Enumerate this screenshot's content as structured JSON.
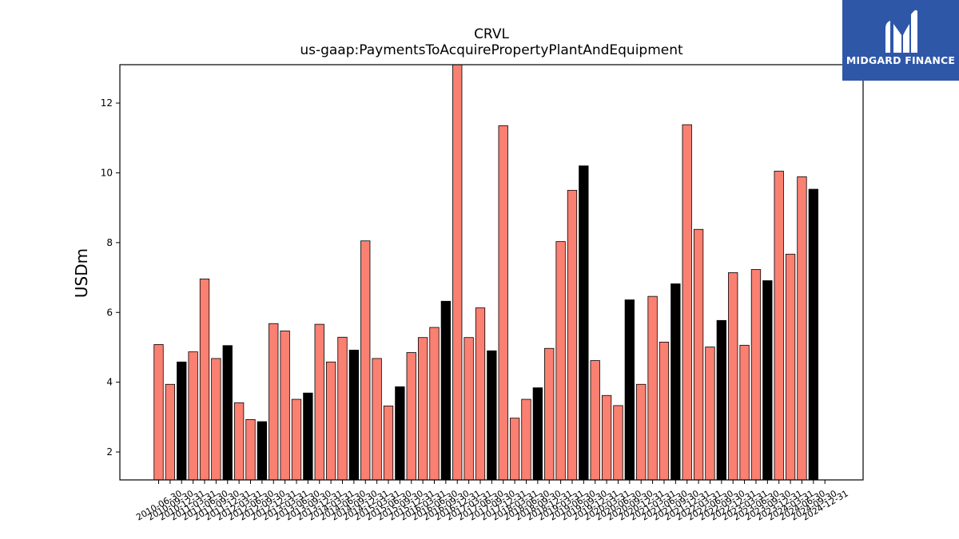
{
  "logo": {
    "text": "MIDGARD FINANCE",
    "background": "#2f57a8"
  },
  "colors": {
    "annual": "#000000",
    "quarterly": "#fa8072",
    "edge": "#000000"
  },
  "chart_data": {
    "type": "bar",
    "title": "CRVL",
    "subtitle": "us-gaap:PaymentsToAcquirePropertyPlantAndEquipment",
    "xlabel": "",
    "ylabel": "USDm",
    "ylim": [
      1.2,
      13.1
    ],
    "yticks": [
      2,
      4,
      6,
      8,
      10,
      12
    ],
    "grid": false,
    "legend": "none",
    "categories": [
      "2010-06-30",
      "2010-09-30",
      "2010-12-31",
      "2011-03-31",
      "2011-06-30",
      "2011-09-30",
      "2011-12-31",
      "2012-03-31",
      "2012-06-30",
      "2012-09-30",
      "2012-12-31",
      "2013-03-31",
      "2013-06-30",
      "2013-09-30",
      "2013-12-31",
      "2014-03-31",
      "2014-06-30",
      "2014-09-30",
      "2014-12-31",
      "2015-03-31",
      "2015-06-30",
      "2015-09-30",
      "2015-12-31",
      "2016-03-31",
      "2016-06-30",
      "2016-09-30",
      "2016-12-31",
      "2017-03-31",
      "2017-06-30",
      "2017-09-30",
      "2017-12-31",
      "2018-03-31",
      "2018-06-30",
      "2018-09-30",
      "2018-12-31",
      "2019-03-31",
      "2019-06-30",
      "2019-09-30",
      "2019-12-31",
      "2020-03-31",
      "2020-06-30",
      "2020-09-30",
      "2020-12-31",
      "2021-03-31",
      "2021-06-30",
      "2021-09-30",
      "2021-12-31",
      "2022-03-31",
      "2022-06-30",
      "2022-09-30",
      "2022-12-31",
      "2023-03-31",
      "2023-06-30",
      "2023-09-30",
      "2023-12-31",
      "2024-03-31",
      "2024-06-30",
      "2024-09-30",
      "2024-12-31"
    ],
    "values": [
      5.08,
      3.94,
      4.58,
      4.87,
      6.96,
      4.68,
      5.05,
      3.41,
      2.93,
      2.87,
      5.68,
      5.47,
      3.51,
      3.69,
      5.66,
      4.58,
      5.29,
      4.92,
      8.05,
      4.68,
      3.32,
      3.87,
      4.85,
      5.28,
      5.57,
      6.32,
      13.2,
      5.28,
      6.13,
      4.9,
      11.35,
      2.97,
      3.51,
      3.84,
      4.97,
      8.03,
      9.5,
      10.2,
      4.62,
      3.62,
      3.33,
      6.36,
      3.94,
      6.46,
      5.15,
      6.82,
      11.38,
      8.38,
      5.01,
      5.77,
      7.14,
      5.06,
      7.23,
      6.91,
      10.05,
      7.67,
      9.89,
      9.53,
      null
    ],
    "bar_kind": [
      "q",
      "q",
      "a",
      "q",
      "q",
      "q",
      "a",
      "q",
      "q",
      "a",
      "q",
      "q",
      "q",
      "a",
      "q",
      "q",
      "q",
      "a",
      "q",
      "q",
      "q",
      "a",
      "q",
      "q",
      "q",
      "a",
      "q",
      "q",
      "q",
      "a",
      "q",
      "q",
      "q",
      "a",
      "q",
      "q",
      "q",
      "a",
      "q",
      "q",
      "q",
      "a",
      "q",
      "q",
      "q",
      "a",
      "q",
      "q",
      "q",
      "a",
      "q",
      "q",
      "q",
      "a",
      "q",
      "q",
      "q",
      "a",
      "q"
    ]
  }
}
